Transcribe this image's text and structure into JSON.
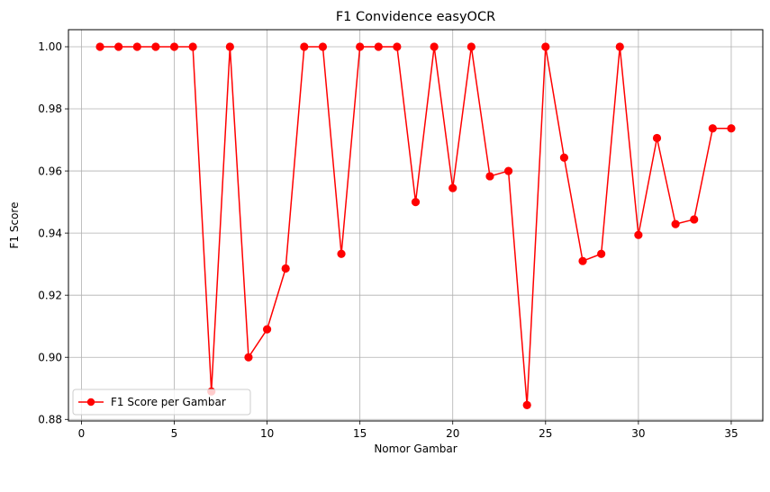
{
  "chart_data": {
    "type": "line",
    "title": "F1 Convidence easyOCR",
    "xlabel": "Nomor Gambar",
    "ylabel": "F1 Score",
    "xlim": [
      -0.7,
      36.7
    ],
    "ylim": [
      0.8795,
      1.0055
    ],
    "xticks": [
      0,
      5,
      10,
      15,
      20,
      25,
      30,
      35
    ],
    "yticks": [
      0.88,
      0.9,
      0.92,
      0.94,
      0.96,
      0.98,
      1.0
    ],
    "xtick_labels": [
      "0",
      "5",
      "10",
      "15",
      "20",
      "25",
      "30",
      "35"
    ],
    "ytick_labels": [
      "0.88",
      "0.90",
      "0.92",
      "0.94",
      "0.96",
      "0.98",
      "1.00"
    ],
    "grid": true,
    "legend_position": "lower-left",
    "series": [
      {
        "name": "F1 Score per Gambar",
        "color": "#ff0000",
        "marker": "circle",
        "x": [
          1,
          2,
          3,
          4,
          5,
          6,
          7,
          8,
          9,
          10,
          11,
          12,
          13,
          14,
          15,
          16,
          17,
          18,
          19,
          20,
          21,
          22,
          23,
          24,
          25,
          26,
          27,
          28,
          29,
          30,
          31,
          32,
          33,
          34,
          35
        ],
        "y": [
          1.0,
          1.0,
          1.0,
          1.0,
          1.0,
          1.0,
          0.889,
          1.0,
          0.9,
          0.909,
          0.9286,
          1.0,
          1.0,
          0.9333,
          1.0,
          1.0,
          1.0,
          0.95,
          1.0,
          0.9545,
          1.0,
          0.9583,
          0.96,
          0.8846,
          1.0,
          0.9643,
          0.931,
          0.9333,
          1.0,
          0.9394,
          0.9706,
          0.9429,
          0.9444,
          0.9737,
          0.9737
        ]
      }
    ]
  }
}
